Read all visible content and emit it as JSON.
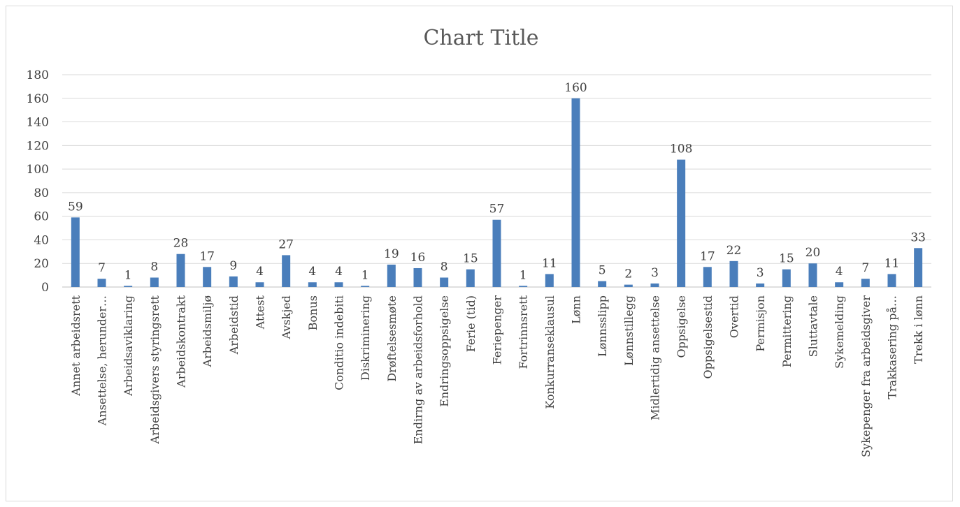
{
  "chart_data": {
    "type": "bar",
    "title": "Chart Title",
    "xlabel": "",
    "ylabel": "",
    "ylim": [
      0,
      180
    ],
    "yticks": [
      "0",
      "20",
      "40",
      "60",
      "80",
      "100",
      "120",
      "140",
      "160",
      "180"
    ],
    "grid": true,
    "legend": "none",
    "bar_color": "#4a7ebb",
    "categories": [
      "Annet arbeidsrett",
      "Ansettelse, herunder…",
      "Arbeidsaviklaring",
      "Arbeidsgivers styringsrett",
      "Arbeidskontrakt",
      "Arbeidsmiljø",
      "Arbeidstid",
      "Attest",
      "Avskjed",
      "Bonus",
      "Conditio indebiti",
      "Diskriminering",
      "Drøftelsesmøte",
      "Endirng av arbeidsforhold",
      "Endringsoppsigelse",
      "Ferie (tid)",
      "Feriepenger",
      "Fortrinnsrett",
      "Konkurranseklausul",
      "Lønn",
      "Lønnsslipp",
      "Lønnstillegg",
      "Midlertidig ansettelse",
      "Oppsigelse",
      "Oppsigelsestid",
      "Overtid",
      "Permisjon",
      "Permittering",
      "Sluttavtale",
      "Sykemelding",
      "Sykepenger fra arbeidsgiver",
      "Trakkasering på…",
      "Trekk i lønn"
    ],
    "values": [
      59,
      7,
      1,
      8,
      28,
      17,
      9,
      4,
      27,
      4,
      4,
      1,
      19,
      16,
      8,
      15,
      57,
      1,
      11,
      160,
      5,
      2,
      3,
      108,
      17,
      22,
      3,
      15,
      20,
      4,
      7,
      11,
      33
    ]
  }
}
